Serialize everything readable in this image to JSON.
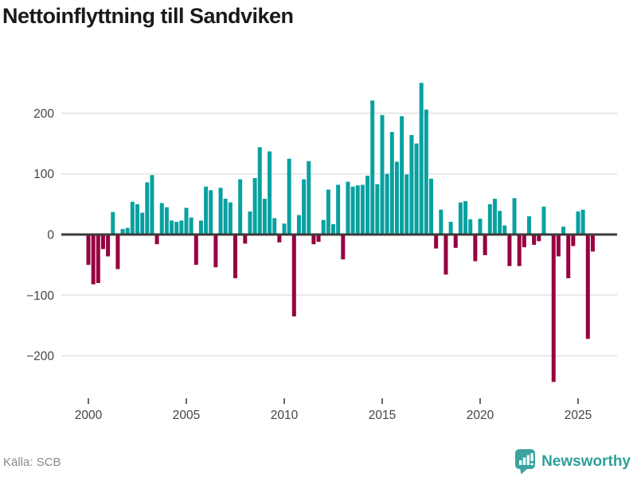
{
  "title": "Nettoinflyttning till Sandviken",
  "source": "Källa: SCB",
  "brand": {
    "name": "Newsworthy",
    "icon": "newsworthy-pin-barchart-icon"
  },
  "colors": {
    "positive": "#09a1a0",
    "negative": "#970140",
    "zero_axis": "#3b3b3b",
    "grid": "#e3e3e3",
    "tick_label": "#444444",
    "title_text": "#1a1a1a",
    "brand_teal": "#3aa39e",
    "source_gray": "#8a8a8a"
  },
  "chart_data": {
    "type": "bar",
    "title": "Nettoinflyttning till Sandviken",
    "xlabel": "",
    "ylabel": "",
    "frequency": "quarterly",
    "x_start_year": 2000,
    "x_start_quarter": 1,
    "y_ticks": [
      -200,
      -100,
      0,
      100,
      200
    ],
    "x_ticks": [
      2000,
      2005,
      2010,
      2015,
      2020,
      2025
    ],
    "ylim": [
      -260,
      265
    ],
    "grid": "horizontal",
    "legend": "none",
    "values": [
      -50,
      -82,
      -80,
      -24,
      -36,
      37,
      -57,
      9,
      11,
      54,
      50,
      36,
      86,
      98,
      -16,
      52,
      45,
      23,
      21,
      23,
      44,
      28,
      -50,
      23,
      79,
      73,
      -54,
      77,
      59,
      53,
      -72,
      91,
      -15,
      38,
      93,
      144,
      59,
      137,
      27,
      -13,
      18,
      125,
      -135,
      32,
      91,
      121,
      -16,
      -12,
      24,
      74,
      17,
      82,
      -41,
      87,
      79,
      81,
      82,
      97,
      221,
      83,
      197,
      100,
      169,
      120,
      195,
      99,
      164,
      150,
      250,
      206,
      92,
      -23,
      41,
      -66,
      21,
      -22,
      53,
      55,
      25,
      -44,
      26,
      -34,
      50,
      59,
      39,
      15,
      -52,
      60,
      -52,
      -21,
      30,
      -17,
      -11,
      46,
      0,
      -243,
      -36,
      13,
      -72,
      -19,
      38,
      41,
      -172,
      -28
    ]
  }
}
